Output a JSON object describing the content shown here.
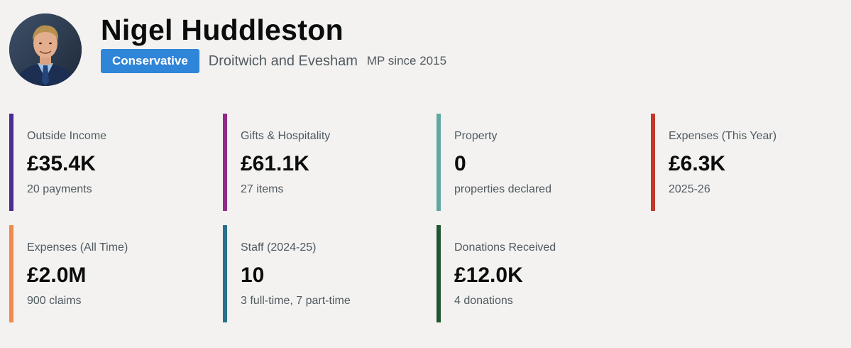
{
  "mp": {
    "name": "Nigel Huddleston",
    "party": "Conservative",
    "constituency": "Droitwich and Evesham",
    "since": "MP since 2015"
  },
  "colors": {
    "party_badge": "#2f85d8",
    "outside_income": "#4c2c92",
    "gifts": "#912b88",
    "property": "#5fa8a0",
    "expenses_year": "#c0392b",
    "expenses_all": "#f08a4b",
    "staff": "#28718a",
    "donations": "#1e5631"
  },
  "cards": [
    {
      "label": "Outside Income",
      "value": "£35.4K",
      "sub": "20 payments",
      "color_key": "outside_income"
    },
    {
      "label": "Gifts & Hospitality",
      "value": "£61.1K",
      "sub": "27 items",
      "color_key": "gifts"
    },
    {
      "label": "Property",
      "value": "0",
      "sub": "properties declared",
      "color_key": "property"
    },
    {
      "label": "Expenses (This Year)",
      "value": "£6.3K",
      "sub": "2025-26",
      "color_key": "expenses_year"
    },
    {
      "label": "Expenses (All Time)",
      "value": "£2.0M",
      "sub": "900 claims",
      "color_key": "expenses_all"
    },
    {
      "label": "Staff (2024-25)",
      "value": "10",
      "sub": "3 full-time, 7 part-time",
      "color_key": "staff"
    },
    {
      "label": "Donations Received",
      "value": "£12.0K",
      "sub": "4 donations",
      "color_key": "donations"
    }
  ]
}
